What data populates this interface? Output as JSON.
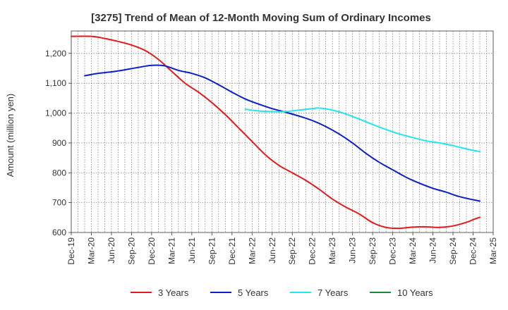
{
  "chart_data": {
    "type": "line",
    "title": "[3275]  Trend of Mean of 12-Month Moving Sum of Ordinary Incomes",
    "ylabel": "Amount (million yen)",
    "xlabel": "",
    "ylim": [
      600,
      1275
    ],
    "yticks": [
      600,
      700,
      800,
      900,
      1000,
      1100,
      1200
    ],
    "ytick_labels": [
      "600",
      "700",
      "800",
      "900",
      "1,000",
      "1,100",
      "1,200"
    ],
    "x_start": "Dec-19",
    "x_end": "Mar-25",
    "months_span": 63,
    "xtick_labels": [
      "Dec-19",
      "Mar-20",
      "Jun-20",
      "Sep-20",
      "Dec-20",
      "Mar-21",
      "Jun-21",
      "Sep-21",
      "Dec-21",
      "Mar-22",
      "Jun-22",
      "Sep-22",
      "Dec-22",
      "Mar-23",
      "Jun-23",
      "Sep-23",
      "Dec-23",
      "Mar-24",
      "Jun-24",
      "Sep-24",
      "Dec-24",
      "Mar-25"
    ],
    "grid": true,
    "legend_position": "bottom",
    "series": [
      {
        "name": "3 Years",
        "color": "#e31a1c",
        "points": [
          [
            0,
            1257
          ],
          [
            3,
            1257
          ],
          [
            5,
            1250
          ],
          [
            7,
            1240
          ],
          [
            9,
            1228
          ],
          [
            11,
            1210
          ],
          [
            13,
            1180
          ],
          [
            15,
            1140
          ],
          [
            17,
            1100
          ],
          [
            19,
            1070
          ],
          [
            21,
            1035
          ],
          [
            23,
            995
          ],
          [
            25,
            950
          ],
          [
            27,
            905
          ],
          [
            29,
            860
          ],
          [
            31,
            825
          ],
          [
            33,
            800
          ],
          [
            35,
            775
          ],
          [
            37,
            745
          ],
          [
            39,
            712
          ],
          [
            41,
            685
          ],
          [
            43,
            662
          ],
          [
            45,
            633
          ],
          [
            47,
            617
          ],
          [
            49,
            614
          ],
          [
            51,
            618
          ],
          [
            53,
            619
          ],
          [
            55,
            617
          ],
          [
            57,
            622
          ],
          [
            59,
            634
          ],
          [
            60,
            643
          ],
          [
            61,
            651
          ]
        ]
      },
      {
        "name": "5 Years",
        "color": "#0a1fc8",
        "points": [
          [
            2,
            1125
          ],
          [
            4,
            1133
          ],
          [
            6,
            1138
          ],
          [
            8,
            1145
          ],
          [
            10,
            1153
          ],
          [
            12,
            1160
          ],
          [
            14,
            1158
          ],
          [
            16,
            1143
          ],
          [
            18,
            1133
          ],
          [
            20,
            1118
          ],
          [
            22,
            1095
          ],
          [
            24,
            1070
          ],
          [
            26,
            1047
          ],
          [
            28,
            1030
          ],
          [
            30,
            1015
          ],
          [
            32,
            1003
          ],
          [
            34,
            990
          ],
          [
            36,
            975
          ],
          [
            38,
            955
          ],
          [
            40,
            930
          ],
          [
            42,
            900
          ],
          [
            44,
            865
          ],
          [
            46,
            835
          ],
          [
            48,
            810
          ],
          [
            50,
            785
          ],
          [
            52,
            765
          ],
          [
            54,
            748
          ],
          [
            56,
            735
          ],
          [
            58,
            720
          ],
          [
            61,
            705
          ]
        ]
      },
      {
        "name": "7 Years",
        "color": "#22e5ef",
        "points": [
          [
            26,
            1013
          ],
          [
            28,
            1007
          ],
          [
            30,
            1005
          ],
          [
            32,
            1005
          ],
          [
            34,
            1010
          ],
          [
            36,
            1015
          ],
          [
            37,
            1017
          ],
          [
            39,
            1010
          ],
          [
            41,
            997
          ],
          [
            43,
            980
          ],
          [
            45,
            962
          ],
          [
            47,
            945
          ],
          [
            49,
            930
          ],
          [
            51,
            918
          ],
          [
            53,
            907
          ],
          [
            55,
            900
          ],
          [
            57,
            891
          ],
          [
            59,
            880
          ],
          [
            61,
            871
          ]
        ]
      },
      {
        "name": "10 Years",
        "color": "#1c8a2e",
        "points": []
      }
    ]
  }
}
